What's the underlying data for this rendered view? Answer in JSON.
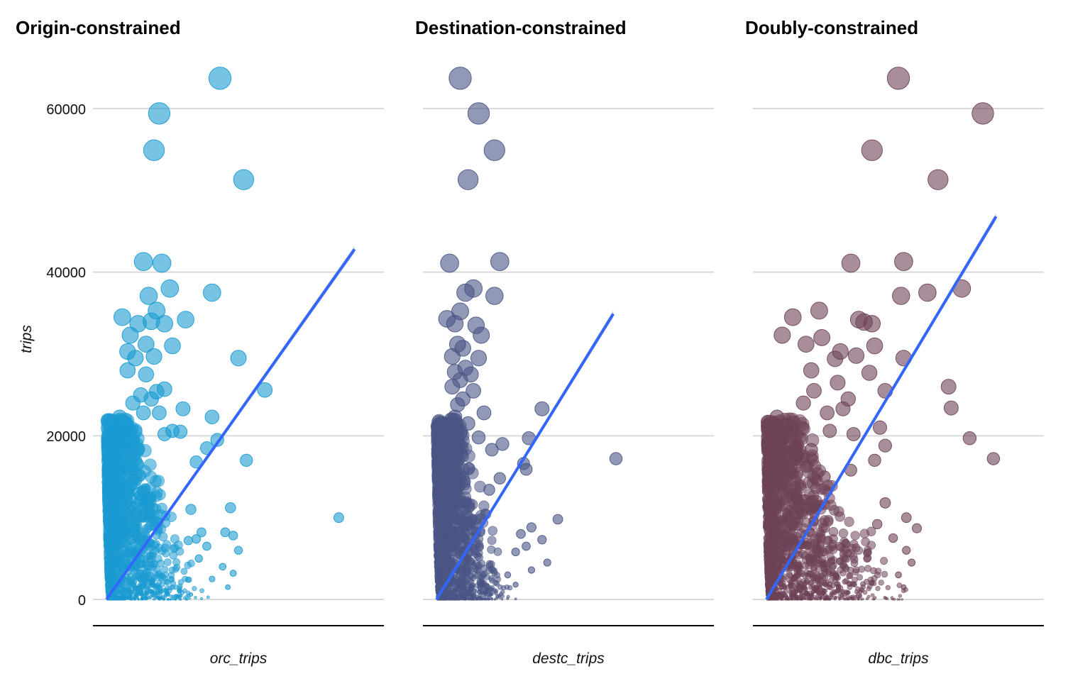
{
  "chart_data": {
    "type": "scatter",
    "y_label": "trips",
    "y_ticks": [
      0,
      20000,
      40000,
      60000
    ],
    "ylim": [
      -3000,
      65500
    ],
    "grid": true,
    "fit": "linear regression with confidence band",
    "panels": [
      {
        "title": "Origin-constrained",
        "x_label": "orc_trips",
        "color": "#1b9bd1",
        "xlim": [
          0,
          1
        ],
        "fit_line": {
          "x": [
            0.0,
            0.94
          ],
          "y": [
            0,
            42800
          ]
        },
        "points": [
          [
            0.43,
            63700
          ],
          [
            0.2,
            59400
          ],
          [
            0.18,
            54900
          ],
          [
            0.52,
            51300
          ],
          [
            0.14,
            41300
          ],
          [
            0.21,
            41100
          ],
          [
            0.24,
            38000
          ],
          [
            0.4,
            37500
          ],
          [
            0.16,
            37100
          ],
          [
            0.19,
            35300
          ],
          [
            0.06,
            34500
          ],
          [
            0.3,
            34200
          ],
          [
            0.17,
            34000
          ],
          [
            0.12,
            33700
          ],
          [
            0.22,
            33700
          ],
          [
            0.09,
            32300
          ],
          [
            0.15,
            31200
          ],
          [
            0.25,
            31000
          ],
          [
            0.08,
            30300
          ],
          [
            0.18,
            29700
          ],
          [
            0.5,
            29500
          ],
          [
            0.11,
            29500
          ],
          [
            0.08,
            28000
          ],
          [
            0.15,
            27500
          ],
          [
            0.6,
            25600
          ],
          [
            0.22,
            25700
          ],
          [
            0.19,
            25400
          ],
          [
            0.13,
            25000
          ],
          [
            0.17,
            24500
          ],
          [
            0.1,
            24000
          ],
          [
            0.29,
            23300
          ],
          [
            0.2,
            22800
          ],
          [
            0.4,
            22300
          ],
          [
            0.05,
            22300
          ],
          [
            0.14,
            22800
          ],
          [
            0.25,
            20600
          ],
          [
            0.09,
            20500
          ],
          [
            0.28,
            20500
          ],
          [
            0.22,
            20200
          ],
          [
            0.42,
            19500
          ],
          [
            0.38,
            18500
          ],
          [
            0.53,
            17000
          ],
          [
            0.34,
            16800
          ],
          [
            0.88,
            10000
          ],
          [
            0.47,
            11200
          ],
          [
            0.32,
            11000
          ],
          [
            0.45,
            8200
          ],
          [
            0.36,
            8200
          ],
          [
            0.48,
            7800
          ],
          [
            0.34,
            7400
          ],
          [
            0.31,
            7200
          ],
          [
            0.38,
            6500
          ],
          [
            0.5,
            6000
          ],
          [
            0.35,
            5000
          ],
          [
            0.44,
            4000
          ],
          [
            0.48,
            3200
          ],
          [
            0.4,
            2500
          ],
          [
            0.46,
            1500
          ],
          [
            0.32,
            600
          ]
        ]
      },
      {
        "title": "Destination-constrained",
        "x_label": "destc_trips",
        "color": "#4a5585",
        "xlim": [
          0,
          1
        ],
        "fit_line": {
          "x": [
            0.0,
            0.67
          ],
          "y": [
            0,
            34900
          ]
        },
        "points": [
          [
            0.09,
            63700
          ],
          [
            0.16,
            59400
          ],
          [
            0.22,
            54900
          ],
          [
            0.12,
            51300
          ],
          [
            0.05,
            41100
          ],
          [
            0.24,
            41300
          ],
          [
            0.14,
            38000
          ],
          [
            0.22,
            37100
          ],
          [
            0.11,
            37500
          ],
          [
            0.09,
            35200
          ],
          [
            0.04,
            34300
          ],
          [
            0.07,
            33700
          ],
          [
            0.15,
            33500
          ],
          [
            0.17,
            32300
          ],
          [
            0.08,
            31200
          ],
          [
            0.1,
            30700
          ],
          [
            0.06,
            29700
          ],
          [
            0.16,
            29500
          ],
          [
            0.11,
            28300
          ],
          [
            0.07,
            27800
          ],
          [
            0.13,
            27500
          ],
          [
            0.09,
            26800
          ],
          [
            0.06,
            26000
          ],
          [
            0.14,
            25500
          ],
          [
            0.1,
            24500
          ],
          [
            0.08,
            23800
          ],
          [
            0.18,
            22800
          ],
          [
            0.07,
            22300
          ],
          [
            0.12,
            21500
          ],
          [
            0.05,
            21000
          ],
          [
            0.09,
            20300
          ],
          [
            0.4,
            23300
          ],
          [
            0.35,
            19700
          ],
          [
            0.16,
            19800
          ],
          [
            0.25,
            19000
          ],
          [
            0.21,
            18300
          ],
          [
            0.33,
            16600
          ],
          [
            0.34,
            15900
          ],
          [
            0.68,
            17200
          ],
          [
            0.24,
            14800
          ],
          [
            0.2,
            13400
          ],
          [
            0.46,
            9800
          ],
          [
            0.36,
            8800
          ],
          [
            0.32,
            8000
          ],
          [
            0.4,
            7300
          ],
          [
            0.34,
            6500
          ],
          [
            0.3,
            5800
          ],
          [
            0.42,
            4500
          ],
          [
            0.36,
            3600
          ],
          [
            0.27,
            3000
          ],
          [
            0.3,
            1800
          ]
        ]
      },
      {
        "title": "Doubly-constrained",
        "x_label": "dbc_trips",
        "color": "#6e4258",
        "xlim": [
          0,
          1
        ],
        "fit_line": {
          "x": [
            0.0,
            0.87
          ],
          "y": [
            0,
            46800
          ]
        },
        "points": [
          [
            0.5,
            63700
          ],
          [
            0.82,
            59400
          ],
          [
            0.4,
            54900
          ],
          [
            0.65,
            51300
          ],
          [
            0.32,
            41100
          ],
          [
            0.52,
            41300
          ],
          [
            0.74,
            38000
          ],
          [
            0.61,
            37500
          ],
          [
            0.51,
            37100
          ],
          [
            0.1,
            34500
          ],
          [
            0.2,
            35300
          ],
          [
            0.35,
            34200
          ],
          [
            0.37,
            33900
          ],
          [
            0.4,
            33700
          ],
          [
            0.06,
            32300
          ],
          [
            0.21,
            32000
          ],
          [
            0.15,
            31200
          ],
          [
            0.41,
            31000
          ],
          [
            0.28,
            30300
          ],
          [
            0.34,
            29800
          ],
          [
            0.52,
            29500
          ],
          [
            0.26,
            29400
          ],
          [
            0.17,
            28000
          ],
          [
            0.39,
            27700
          ],
          [
            0.27,
            26500
          ],
          [
            0.69,
            26000
          ],
          [
            0.18,
            25500
          ],
          [
            0.45,
            25500
          ],
          [
            0.31,
            24500
          ],
          [
            0.14,
            24000
          ],
          [
            0.29,
            23300
          ],
          [
            0.7,
            23400
          ],
          [
            0.23,
            22800
          ],
          [
            0.04,
            22300
          ],
          [
            0.43,
            21000
          ],
          [
            0.24,
            20600
          ],
          [
            0.08,
            20500
          ],
          [
            0.33,
            20200
          ],
          [
            0.77,
            19700
          ],
          [
            0.45,
            18800
          ],
          [
            0.17,
            18300
          ],
          [
            0.41,
            17000
          ],
          [
            0.86,
            17200
          ],
          [
            0.32,
            15800
          ],
          [
            0.22,
            15000
          ],
          [
            0.45,
            11800
          ],
          [
            0.53,
            10000
          ],
          [
            0.42,
            9200
          ],
          [
            0.57,
            8700
          ],
          [
            0.48,
            7500
          ],
          [
            0.53,
            6000
          ],
          [
            0.55,
            4500
          ],
          [
            0.5,
            3000
          ],
          [
            0.52,
            1500
          ]
        ]
      }
    ]
  }
}
